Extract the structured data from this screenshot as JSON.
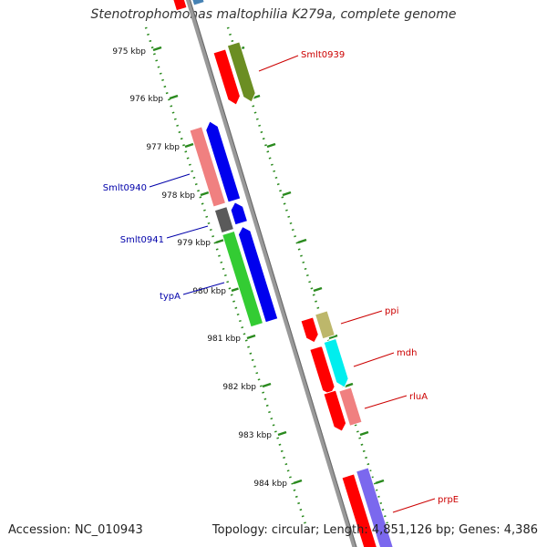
{
  "title": "Stenotrophomonas maltophilia K279a, complete genome",
  "accession": "Accession: NC_010943",
  "summary": "Topology: circular; Length: 4,851,126 bp; Genes: 4,386",
  "colors": {
    "backbone": "#8c8c8c",
    "tick": "#2a8a1e",
    "label_forward": "#cc0000",
    "label_reverse": "#0000aa"
  },
  "kbp_ticks": [
    "975 kbp",
    "976 kbp",
    "977 kbp",
    "978 kbp",
    "979 kbp",
    "980 kbp",
    "981 kbp",
    "982 kbp",
    "983 kbp",
    "984 kbp"
  ],
  "genes": [
    {
      "label": "Smlt0939",
      "strand": "forward",
      "side": "right"
    },
    {
      "label": "Smlt0940",
      "strand": "reverse",
      "side": "left"
    },
    {
      "label": "Smlt0941",
      "strand": "reverse",
      "side": "left"
    },
    {
      "label": "typA",
      "strand": "reverse",
      "side": "left"
    },
    {
      "label": "ppi",
      "strand": "forward",
      "side": "right"
    },
    {
      "label": "mdh",
      "strand": "forward",
      "side": "right"
    },
    {
      "label": "rluA",
      "strand": "forward",
      "side": "right"
    },
    {
      "label": "prpE",
      "strand": "forward",
      "side": "right"
    }
  ],
  "feature_colors": [
    "#ff0000",
    "#6b8e23",
    "#f08080",
    "#0000ee",
    "#5a5a5a",
    "#33cc33",
    "#bdb76b",
    "#00eeee",
    "#7b68ee"
  ]
}
